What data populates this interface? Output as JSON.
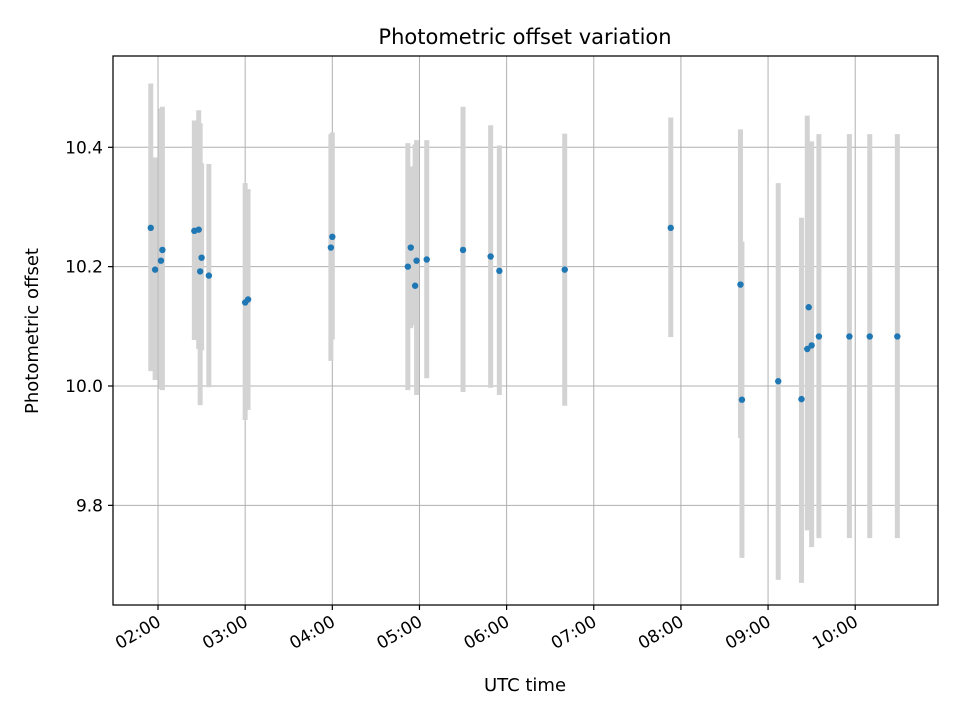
{
  "chart_data": {
    "type": "scatter",
    "title": "Photometric offset variation",
    "xlabel": "UTC time",
    "ylabel": "Photometric offset",
    "x_unit": "hours UTC",
    "xlim": [
      "01:29",
      "10:57"
    ],
    "ylim": [
      9.633,
      10.553
    ],
    "x_ticks": [
      "02:00",
      "03:00",
      "04:00",
      "05:00",
      "06:00",
      "07:00",
      "08:00",
      "09:00",
      "10:00"
    ],
    "y_ticks": [
      "9.8",
      "10.0",
      "10.2",
      "10.4"
    ],
    "grid": true,
    "point_color": "#1f77b4",
    "errorbar_color": "#d3d3d3",
    "points": [
      {
        "x": "01:55",
        "y": 10.265,
        "err_low": 10.025,
        "err_high": 10.507
      },
      {
        "x": "01:58",
        "y": 10.195,
        "err_low": 10.01,
        "err_high": 10.383
      },
      {
        "x": "02:02",
        "y": 10.21,
        "err_low": 9.995,
        "err_high": 10.465
      },
      {
        "x": "02:03",
        "y": 10.228,
        "err_low": 9.993,
        "err_high": 10.468
      },
      {
        "x": "02:25",
        "y": 10.26,
        "err_low": 10.077,
        "err_high": 10.445
      },
      {
        "x": "02:28",
        "y": 10.262,
        "err_low": 10.062,
        "err_high": 10.462
      },
      {
        "x": "02:29",
        "y": 10.192,
        "err_low": 9.968,
        "err_high": 10.44
      },
      {
        "x": "02:30",
        "y": 10.215,
        "err_low": 10.06,
        "err_high": 10.373
      },
      {
        "x": "02:35",
        "y": 10.185,
        "err_low": 9.998,
        "err_high": 10.372
      },
      {
        "x": "03:00",
        "y": 10.14,
        "err_low": 9.943,
        "err_high": 10.34
      },
      {
        "x": "03:02",
        "y": 10.145,
        "err_low": 9.96,
        "err_high": 10.33
      },
      {
        "x": "03:59",
        "y": 10.232,
        "err_low": 10.042,
        "err_high": 10.422
      },
      {
        "x": "04:00",
        "y": 10.25,
        "err_low": 10.078,
        "err_high": 10.425
      },
      {
        "x": "04:52",
        "y": 10.2,
        "err_low": 9.993,
        "err_high": 10.407
      },
      {
        "x": "04:54",
        "y": 10.232,
        "err_low": 10.097,
        "err_high": 10.368
      },
      {
        "x": "04:57",
        "y": 10.168,
        "err_low": 10.102,
        "err_high": 10.405
      },
      {
        "x": "04:58",
        "y": 10.21,
        "err_low": 9.985,
        "err_high": 10.412
      },
      {
        "x": "05:05",
        "y": 10.212,
        "err_low": 10.013,
        "err_high": 10.412
      },
      {
        "x": "05:30",
        "y": 10.228,
        "err_low": 9.99,
        "err_high": 10.468
      },
      {
        "x": "05:49",
        "y": 10.217,
        "err_low": 9.997,
        "err_high": 10.437
      },
      {
        "x": "05:55",
        "y": 10.193,
        "err_low": 9.985,
        "err_high": 10.403
      },
      {
        "x": "06:40",
        "y": 10.195,
        "err_low": 9.967,
        "err_high": 10.423
      },
      {
        "x": "07:53",
        "y": 10.265,
        "err_low": 10.082,
        "err_high": 10.45
      },
      {
        "x": "08:41",
        "y": 10.17,
        "err_low": 9.913,
        "err_high": 10.43
      },
      {
        "x": "08:42",
        "y": 9.977,
        "err_low": 9.712,
        "err_high": 10.242
      },
      {
        "x": "09:07",
        "y": 10.008,
        "err_low": 9.675,
        "err_high": 10.34
      },
      {
        "x": "09:23",
        "y": 9.978,
        "err_low": 9.67,
        "err_high": 10.282
      },
      {
        "x": "09:27",
        "y": 10.062,
        "err_low": 9.758,
        "err_high": 10.453
      },
      {
        "x": "09:28",
        "y": 10.132,
        "err_low": 9.768,
        "err_high": 10.347
      },
      {
        "x": "09:30",
        "y": 10.068,
        "err_low": 9.73,
        "err_high": 10.41
      },
      {
        "x": "09:35",
        "y": 10.083,
        "err_low": 9.745,
        "err_high": 10.422
      },
      {
        "x": "09:56",
        "y": 10.083,
        "err_low": 9.745,
        "err_high": 10.422
      },
      {
        "x": "10:10",
        "y": 10.083,
        "err_low": 9.745,
        "err_high": 10.422
      },
      {
        "x": "10:29",
        "y": 10.083,
        "err_low": 9.745,
        "err_high": 10.422
      }
    ]
  }
}
